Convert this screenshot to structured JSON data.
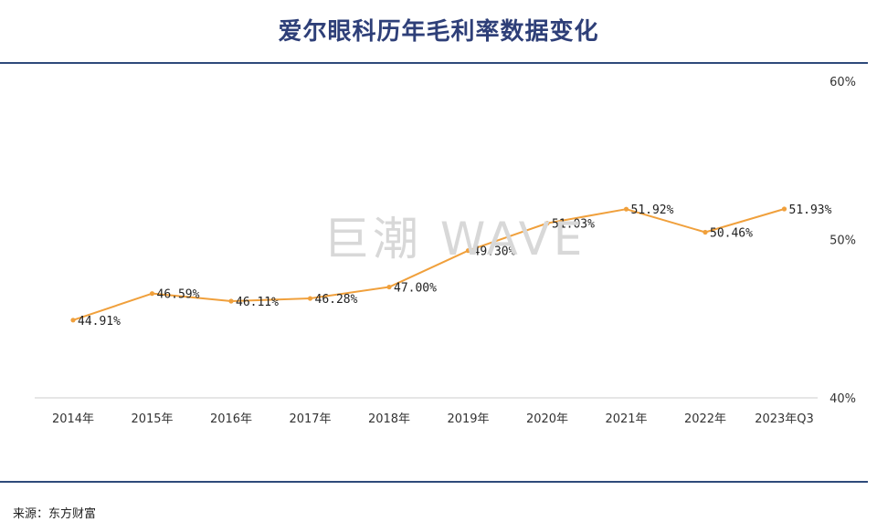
{
  "page": {
    "title": "爱尔眼科历年毛利率数据变化",
    "source": "来源：东方财富",
    "watermark": "巨潮 WAVE"
  },
  "colors": {
    "title": "#2e3f78",
    "rule": "#2e4a7a",
    "line": "#f0a03c",
    "axis": "#cccccc"
  },
  "chart_data": {
    "type": "line",
    "title": "爱尔眼科历年毛利率数据变化",
    "xlabel": "",
    "ylabel": "",
    "categories": [
      "2014年",
      "2015年",
      "2016年",
      "2017年",
      "2018年",
      "2019年",
      "2020年",
      "2021年",
      "2022年",
      "2023年Q3"
    ],
    "series": [
      {
        "values": [
          44.91,
          46.59,
          46.11,
          46.28,
          47.0,
          49.3,
          51.03,
          51.92,
          50.46,
          51.93
        ],
        "labels": [
          "44.91%",
          "46.59%",
          "46.11%",
          "46.28%",
          "47.00%",
          "49.30%",
          "51.03%",
          "51.92%",
          "50.46%",
          "51.93%"
        ]
      }
    ],
    "ylim": [
      40,
      60
    ],
    "yticks": [
      40,
      50,
      60
    ],
    "ytick_labels": [
      "40%",
      "50%",
      "60%"
    ],
    "y_axis_side": "right",
    "grid": false,
    "legend": "none"
  }
}
